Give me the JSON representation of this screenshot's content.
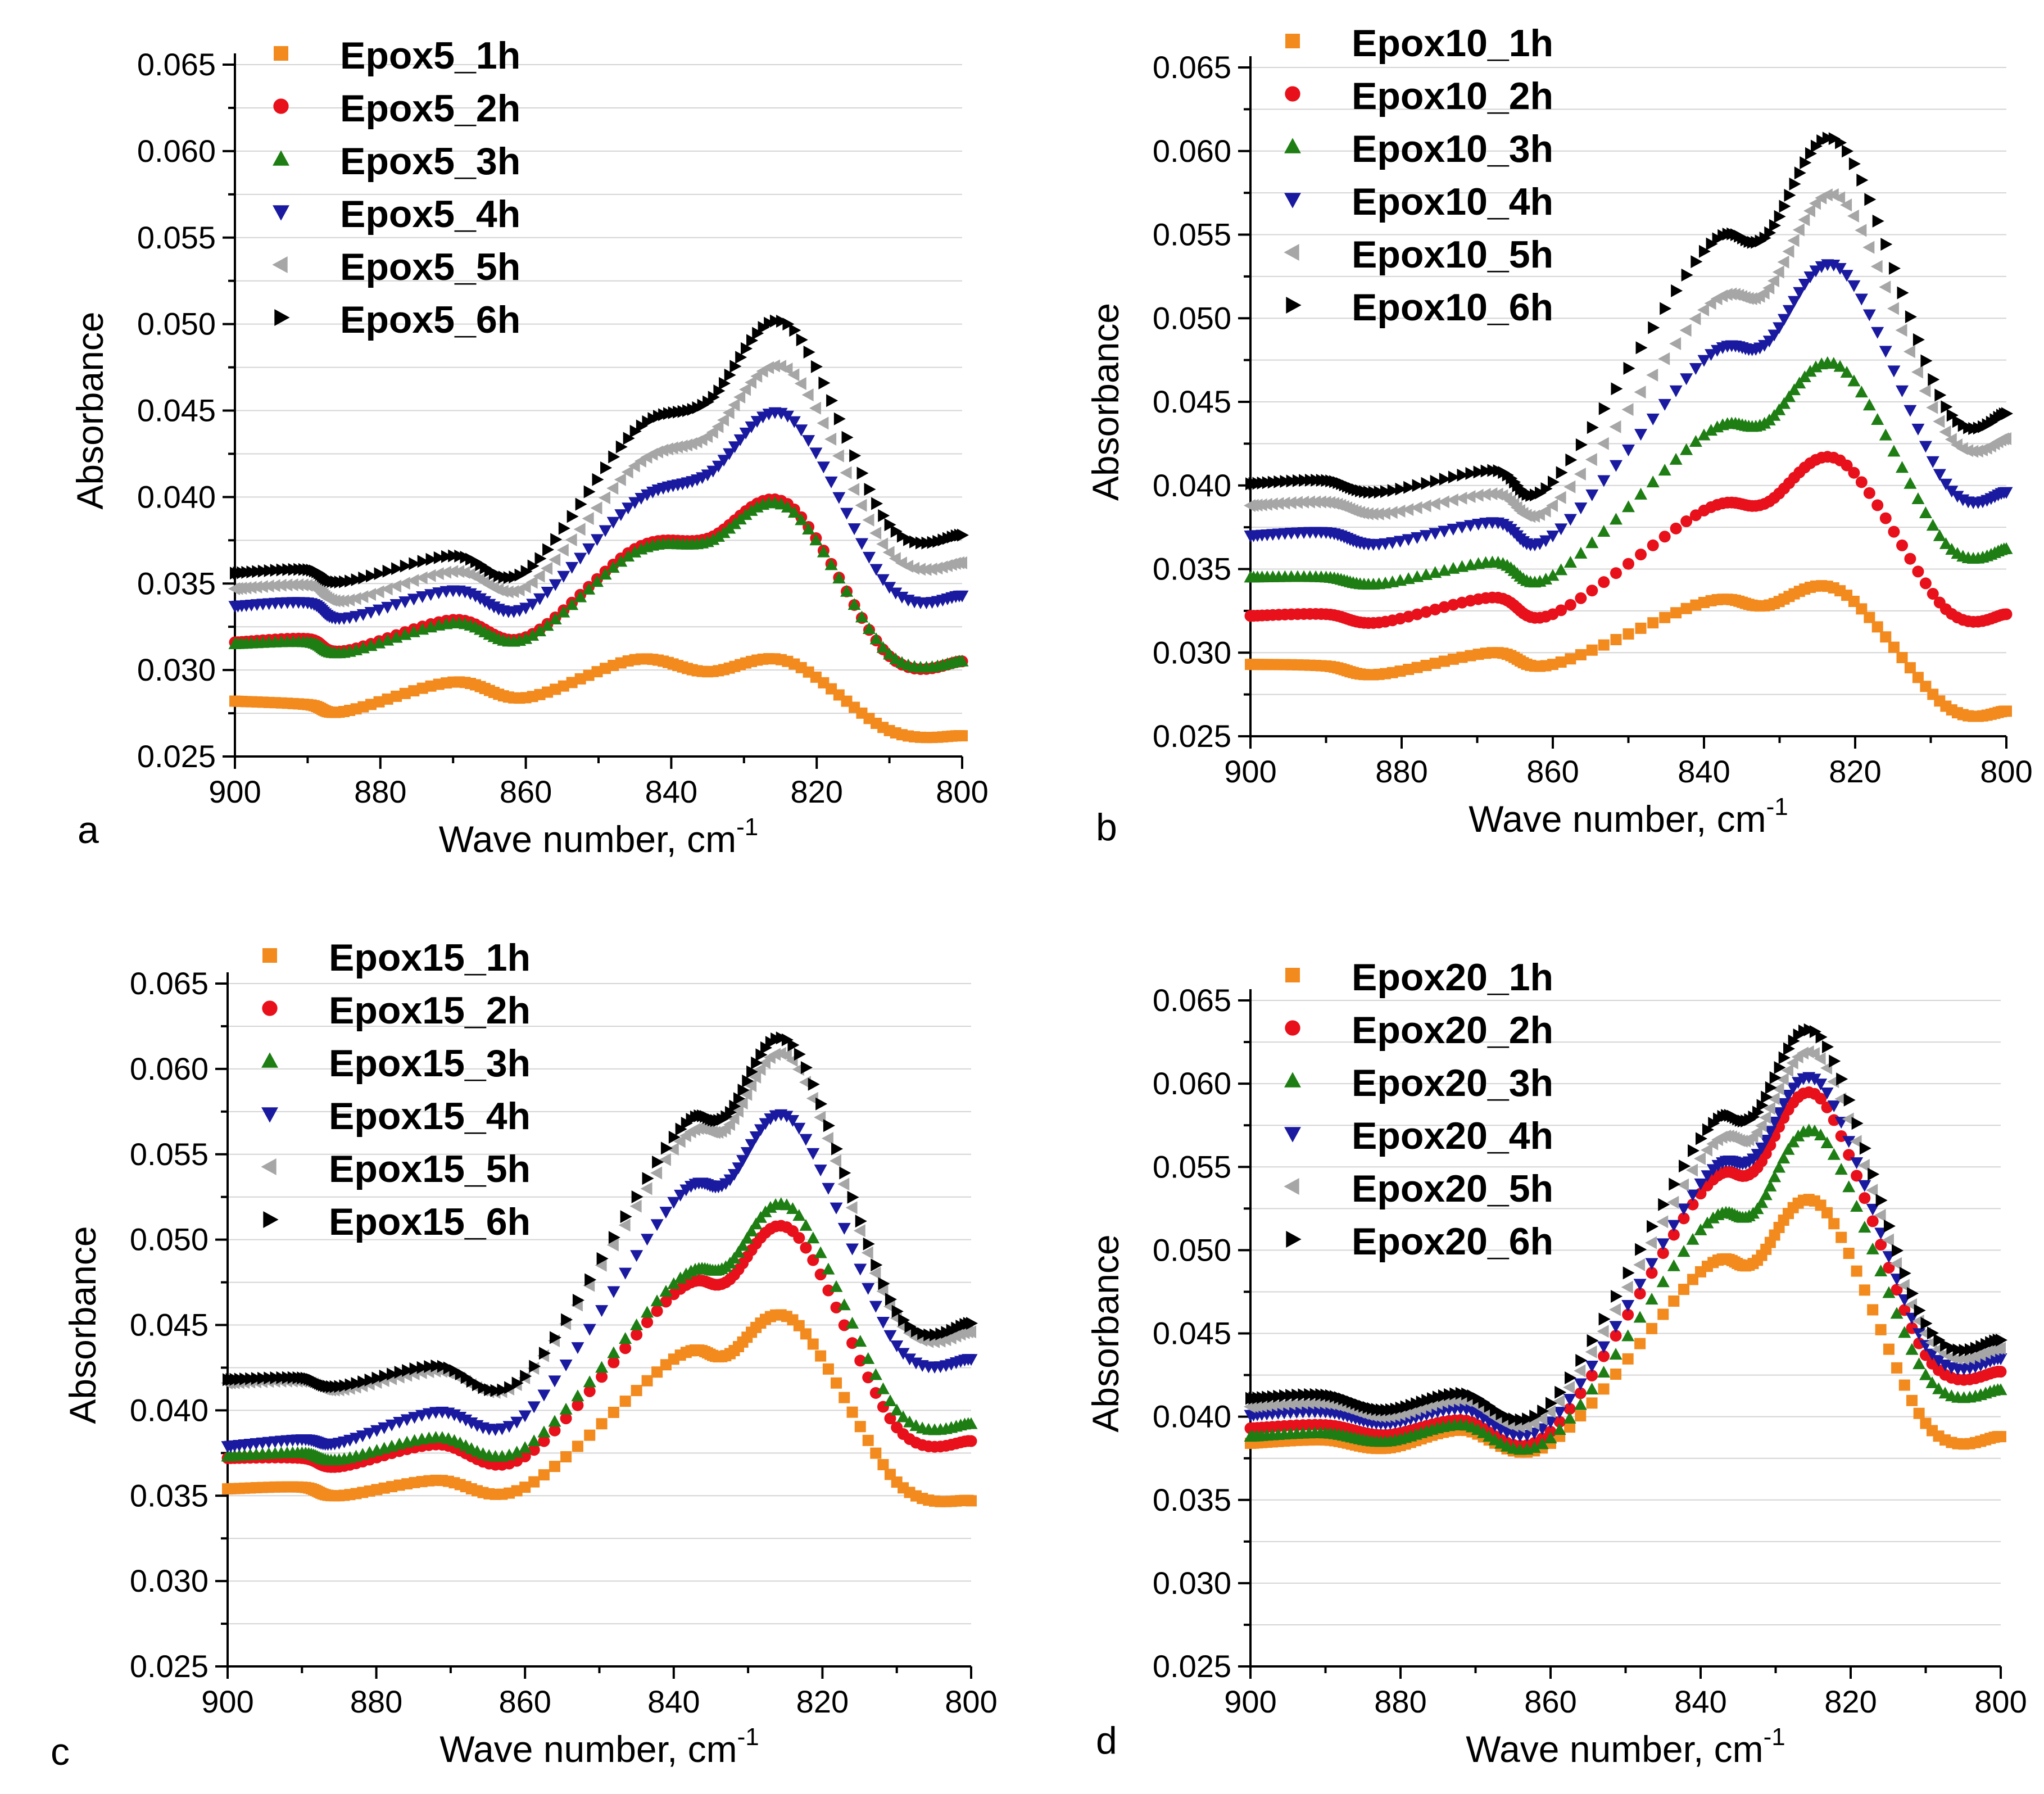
{
  "chart_data": [
    {
      "type": "scatter",
      "panel_label": "a",
      "xlabel": "Wave number, cm",
      "xlabel_sup": "-1",
      "ylabel": "Absorbance",
      "xlim": [
        900,
        800
      ],
      "ylim": [
        0.025,
        0.065
      ],
      "xticks": [
        "900",
        "880",
        "860",
        "840",
        "820",
        "800"
      ],
      "yticks": [
        "0.025",
        "0.030",
        "0.035",
        "0.040",
        "0.045",
        "0.050",
        "0.055",
        "0.060",
        "0.065"
      ],
      "grid": true,
      "legend_position": "top-left",
      "x": [
        900,
        890,
        885,
        870,
        860,
        845,
        835,
        824,
        810,
        800
      ],
      "series": [
        {
          "name": "Epox5_1h",
          "marker": "square",
          "color": "#f28a1e",
          "values": [
            0.0282,
            0.028,
            0.0276,
            0.0293,
            0.0284,
            0.0306,
            0.0299,
            0.0305,
            0.0265,
            0.0262
          ]
        },
        {
          "name": "Epox5_2h",
          "marker": "circle",
          "color": "#e8101a",
          "values": [
            0.0316,
            0.0318,
            0.0311,
            0.0329,
            0.0319,
            0.037,
            0.0376,
            0.0396,
            0.0308,
            0.0305
          ]
        },
        {
          "name": "Epox5_3h",
          "marker": "triangle-up",
          "color": "#1e7e14",
          "values": [
            0.0315,
            0.0316,
            0.031,
            0.0327,
            0.0318,
            0.0368,
            0.0374,
            0.0394,
            0.0309,
            0.0305
          ]
        },
        {
          "name": "Epox5_4h",
          "marker": "triangle-down",
          "color": "#1a1aa0",
          "values": [
            0.0337,
            0.0339,
            0.033,
            0.0346,
            0.0336,
            0.0397,
            0.0413,
            0.0447,
            0.0348,
            0.0343
          ]
        },
        {
          "name": "Epox5_5h",
          "marker": "triangle-left",
          "color": "#a6a6a6",
          "values": [
            0.0347,
            0.0349,
            0.034,
            0.0357,
            0.0348,
            0.0418,
            0.0435,
            0.0474,
            0.0368,
            0.0362
          ]
        },
        {
          "name": "Epox5_6h",
          "marker": "triangle-right",
          "color": "#000000",
          "values": [
            0.0356,
            0.0358,
            0.0351,
            0.0366,
            0.0357,
            0.0438,
            0.0455,
            0.05,
            0.0384,
            0.0378
          ]
        }
      ]
    },
    {
      "type": "scatter",
      "panel_label": "b",
      "xlabel": "Wave number, cm",
      "xlabel_sup": "-1",
      "ylabel": "Absorbance",
      "xlim": [
        900,
        800
      ],
      "ylim": [
        0.025,
        0.065
      ],
      "xticks": [
        "900",
        "880",
        "860",
        "840",
        "820",
        "800"
      ],
      "yticks": [
        "0.025",
        "0.030",
        "0.035",
        "0.040",
        "0.045",
        "0.050",
        "0.055",
        "0.060",
        "0.065"
      ],
      "grid": true,
      "legend_position": "top-left",
      "x": [
        900,
        890,
        883,
        868,
        860,
        840,
        832,
        822,
        808,
        800
      ],
      "series": [
        {
          "name": "Epox10_1h",
          "marker": "square",
          "color": "#f28a1e",
          "values": [
            0.0293,
            0.0292,
            0.0287,
            0.03,
            0.0293,
            0.033,
            0.0328,
            0.0337,
            0.0268,
            0.0265
          ]
        },
        {
          "name": "Epox10_2h",
          "marker": "circle",
          "color": "#e8101a",
          "values": [
            0.0322,
            0.0323,
            0.0318,
            0.0333,
            0.0323,
            0.0385,
            0.0389,
            0.0415,
            0.0326,
            0.0323
          ]
        },
        {
          "name": "Epox10_3h",
          "marker": "triangle-up",
          "color": "#1e7e14",
          "values": [
            0.0345,
            0.0345,
            0.0341,
            0.0354,
            0.0346,
            0.043,
            0.0437,
            0.0471,
            0.0365,
            0.0362
          ]
        },
        {
          "name": "Epox10_4h",
          "marker": "triangle-down",
          "color": "#1a1aa0",
          "values": [
            0.037,
            0.0372,
            0.0365,
            0.0378,
            0.037,
            0.0475,
            0.0484,
            0.053,
            0.0401,
            0.0396
          ]
        },
        {
          "name": "Epox10_5h",
          "marker": "triangle-left",
          "color": "#a6a6a6",
          "values": [
            0.0388,
            0.039,
            0.0383,
            0.0395,
            0.0388,
            0.0505,
            0.0515,
            0.0572,
            0.0432,
            0.0428
          ]
        },
        {
          "name": "Epox10_6h",
          "marker": "triangle-right",
          "color": "#000000",
          "values": [
            0.0401,
            0.0403,
            0.0396,
            0.0409,
            0.0402,
            0.054,
            0.0548,
            0.0605,
            0.0447,
            0.0443
          ]
        }
      ]
    },
    {
      "type": "scatter",
      "panel_label": "c",
      "xlabel": "Wave number, cm",
      "xlabel_sup": "-1",
      "ylabel": "Absorbance",
      "xlim": [
        900,
        800
      ],
      "ylim": [
        0.025,
        0.065
      ],
      "xticks": [
        "900",
        "880",
        "860",
        "840",
        "820",
        "800"
      ],
      "yticks": [
        "0.025",
        "0.030",
        "0.035",
        "0.040",
        "0.045",
        "0.050",
        "0.055",
        "0.060",
        "0.065"
      ],
      "grid": true,
      "legend_position": "top-left",
      "x": [
        900,
        890,
        885,
        872,
        860,
        840,
        833,
        824,
        810,
        800
      ],
      "series": [
        {
          "name": "Epox15_1h",
          "marker": "square",
          "color": "#f28a1e",
          "values": [
            0.0354,
            0.0355,
            0.035,
            0.0359,
            0.0355,
            0.043,
            0.0432,
            0.0453,
            0.0358,
            0.0347
          ]
        },
        {
          "name": "Epox15_2h",
          "marker": "circle",
          "color": "#e8101a",
          "values": [
            0.0372,
            0.0372,
            0.0367,
            0.038,
            0.0373,
            0.0468,
            0.0475,
            0.0505,
            0.039,
            0.0382
          ]
        },
        {
          "name": "Epox15_3h",
          "marker": "triangle-up",
          "color": "#1e7e14",
          "values": [
            0.0373,
            0.0375,
            0.0371,
            0.0384,
            0.0378,
            0.0474,
            0.0484,
            0.0518,
            0.04,
            0.0392
          ]
        },
        {
          "name": "Epox15_4h",
          "marker": "triangle-down",
          "color": "#1a1aa0",
          "values": [
            0.0379,
            0.0383,
            0.0381,
            0.0399,
            0.0397,
            0.0522,
            0.0533,
            0.057,
            0.0438,
            0.043
          ]
        },
        {
          "name": "Epox15_5h",
          "marker": "triangle-left",
          "color": "#a6a6a6",
          "values": [
            0.0416,
            0.0417,
            0.0412,
            0.0423,
            0.0419,
            0.0553,
            0.0565,
            0.0605,
            0.0454,
            0.0446
          ]
        },
        {
          "name": "Epox15_6h",
          "marker": "triangle-right",
          "color": "#000000",
          "values": [
            0.0418,
            0.0419,
            0.0414,
            0.0426,
            0.042,
            0.056,
            0.0572,
            0.0614,
            0.0458,
            0.0451
          ]
        }
      ]
    },
    {
      "type": "scatter",
      "panel_label": "d",
      "xlabel": "Wave number, cm",
      "xlabel_sup": "-1",
      "ylabel": "Absorbance",
      "xlim": [
        900,
        800
      ],
      "ylim": [
        0.025,
        0.065
      ],
      "xticks": [
        "900",
        "880",
        "860",
        "840",
        "820",
        "800"
      ],
      "yticks": [
        "0.025",
        "0.030",
        "0.035",
        "0.040",
        "0.045",
        "0.050",
        "0.055",
        "0.060",
        "0.065"
      ],
      "grid": true,
      "legend_position": "top-left",
      "x": [
        900,
        890,
        882,
        872,
        860,
        840,
        833,
        824,
        810,
        800
      ],
      "series": [
        {
          "name": "Epox20_1h",
          "marker": "square",
          "color": "#f28a1e",
          "values": [
            0.0384,
            0.0386,
            0.0381,
            0.0392,
            0.0384,
            0.0487,
            0.0492,
            0.0527,
            0.0396,
            0.0388
          ]
        },
        {
          "name": "Epox20_2h",
          "marker": "circle",
          "color": "#e8101a",
          "values": [
            0.0393,
            0.0395,
            0.0389,
            0.0398,
            0.0391,
            0.0534,
            0.0547,
            0.0591,
            0.0437,
            0.0427
          ]
        },
        {
          "name": "Epox20_3h",
          "marker": "triangle-up",
          "color": "#1e7e14",
          "values": [
            0.0388,
            0.039,
            0.0385,
            0.0395,
            0.0387,
            0.0512,
            0.0522,
            0.0569,
            0.0425,
            0.0416
          ]
        },
        {
          "name": "Epox20_4h",
          "marker": "triangle-down",
          "color": "#1a1aa0",
          "values": [
            0.0401,
            0.0403,
            0.0396,
            0.0405,
            0.0397,
            0.054,
            0.0555,
            0.06,
            0.0443,
            0.0435
          ]
        },
        {
          "name": "Epox20_5h",
          "marker": "triangle-left",
          "color": "#a6a6a6",
          "values": [
            0.0406,
            0.0408,
            0.04,
            0.041,
            0.0403,
            0.0555,
            0.0568,
            0.0615,
            0.045,
            0.0441
          ]
        },
        {
          "name": "Epox20_6h",
          "marker": "triangle-right",
          "color": "#000000",
          "values": [
            0.0411,
            0.0413,
            0.0404,
            0.0414,
            0.0408,
            0.0567,
            0.058,
            0.0628,
            0.0456,
            0.0446
          ]
        }
      ]
    }
  ]
}
